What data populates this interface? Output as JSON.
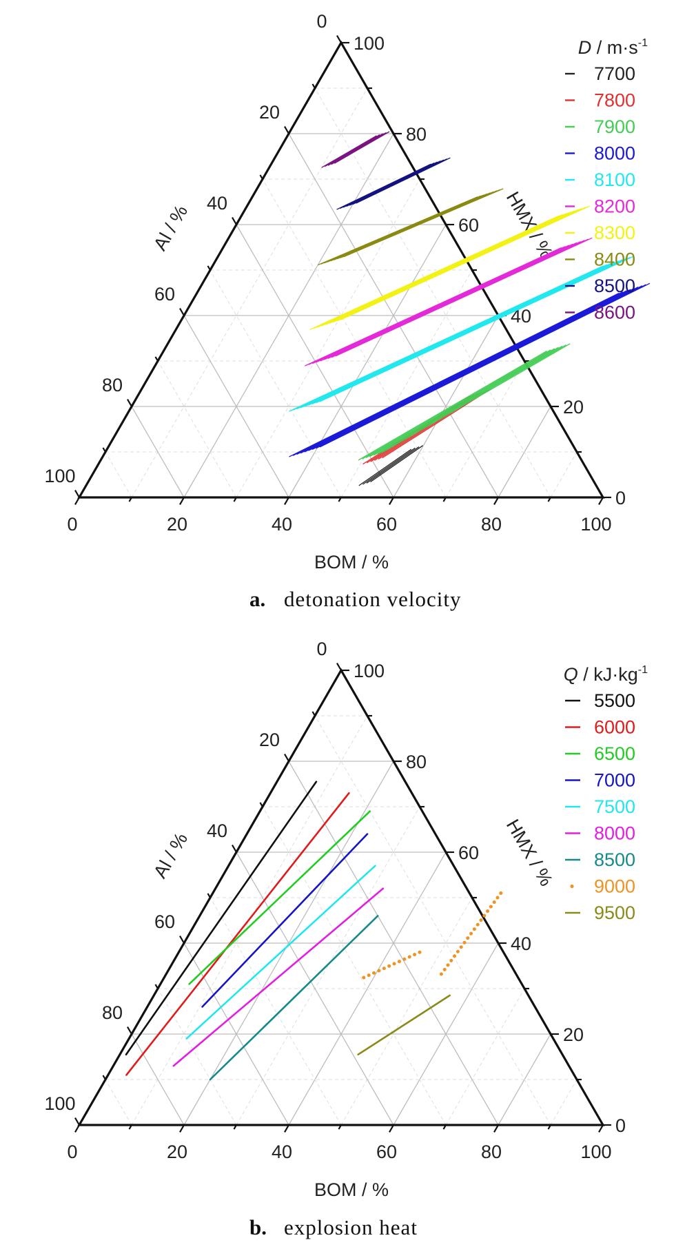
{
  "chart_data": [
    {
      "type": "ternary",
      "axes": {
        "bottom": {
          "label": "BOM / %",
          "ticks": [
            "0",
            "20",
            "40",
            "60",
            "80",
            "100"
          ]
        },
        "left": {
          "label": "Al / %",
          "ticks": [
            "0",
            "20",
            "40",
            "60",
            "80",
            "100"
          ]
        },
        "right": {
          "label": "HMX / %",
          "ticks": [
            "0",
            "20",
            "40",
            "60",
            "80",
            "100"
          ]
        }
      },
      "grid": true,
      "legend": {
        "title_symbol": "D",
        "title_unit": " / m·s",
        "title_sup": "-1",
        "placement": "top-right",
        "marker": "dash"
      },
      "caption": {
        "label": "a.",
        "text": "detonation velocity"
      },
      "series": [
        {
          "name": "7700",
          "color": "#222222",
          "lines": 4,
          "spread": 0.6,
          "hmx": [
            3,
            11
          ],
          "bom_at_lo": 53,
          "bom_at_hi": 59
        },
        {
          "name": "7800",
          "color": "#e23030",
          "lines": 6,
          "spread": 0.6,
          "hmx": [
            8,
            23
          ],
          "bom_at_lo": 52,
          "bom_at_hi": 65
        },
        {
          "name": "7900",
          "color": "#44cc55",
          "lines": 7,
          "spread": 0.6,
          "hmx": [
            9,
            33
          ],
          "bom_at_lo": 51,
          "bom_at_hi": 75
        },
        {
          "name": "8000",
          "color": "#1a1ad8",
          "lines": 9,
          "spread": 0.6,
          "hmx": [
            10,
            46
          ],
          "bom_at_lo": 38,
          "bom_at_hi": 83
        },
        {
          "name": "8100",
          "color": "#22e8ee",
          "lines": 9,
          "spread": 0.6,
          "hmx": [
            20,
            52
          ],
          "bom_at_lo": 33,
          "bom_at_hi": 77
        },
        {
          "name": "8200",
          "color": "#e42ad8",
          "lines": 9,
          "spread": 0.6,
          "hmx": [
            30,
            56
          ],
          "bom_at_lo": 31,
          "bom_at_hi": 67
        },
        {
          "name": "8300",
          "color": "#f2f215",
          "lines": 9,
          "spread": 0.6,
          "hmx": [
            38,
            63
          ],
          "bom_at_lo": 28,
          "bom_at_hi": 63
        },
        {
          "name": "8400",
          "color": "#8a8a12",
          "lines": 9,
          "spread": 0.5,
          "hmx": [
            52,
            67
          ],
          "bom_at_lo": 22,
          "bom_at_hi": 45
        },
        {
          "name": "8500",
          "color": "#141480",
          "lines": 7,
          "spread": 0.5,
          "hmx": [
            64,
            74
          ],
          "bom_at_lo": 19,
          "bom_at_hi": 32
        },
        {
          "name": "8600",
          "color": "#7a1282",
          "lines": 5,
          "spread": 0.5,
          "hmx": [
            73,
            80
          ],
          "bom_at_lo": 11,
          "bom_at_hi": 18
        }
      ]
    },
    {
      "type": "ternary",
      "axes": {
        "bottom": {
          "label": "BOM / %",
          "ticks": [
            "0",
            "20",
            "40",
            "60",
            "80",
            "100"
          ]
        },
        "left": {
          "label": "Al / %",
          "ticks": [
            "0",
            "20",
            "40",
            "60",
            "80",
            "100"
          ]
        },
        "right": {
          "label": "HMX / %",
          "ticks": [
            "0",
            "20",
            "40",
            "60",
            "80",
            "100"
          ]
        }
      },
      "grid": true,
      "legend": {
        "title_symbol": "Q",
        "title_unit": " / kJ·kg",
        "title_sup": "-1",
        "placement": "top-right",
        "marker": "line"
      },
      "caption": {
        "label": "b.",
        "text": "explosion heat"
      },
      "series": [
        {
          "name": "5500",
          "color": "#111111",
          "dash": false,
          "points": [
            [
              7.5,
              75.5
            ],
            [
              1.2,
              15.5
            ]
          ]
        },
        {
          "name": "6000",
          "color": "#e01b1b",
          "dash": false,
          "points": [
            [
              15.0,
              73.0
            ],
            [
              3.5,
              11.0
            ]
          ]
        },
        {
          "name": "6500",
          "color": "#22cc22",
          "dash": false,
          "points": [
            [
              21.0,
              69.0
            ],
            [
              5.5,
              31.0
            ]
          ]
        },
        {
          "name": "7000",
          "color": "#1414c8",
          "dash": false,
          "points": [
            [
              23.0,
              64.0
            ],
            [
              10.5,
              26.0
            ]
          ]
        },
        {
          "name": "7500",
          "color": "#22e6ee",
          "dash": false,
          "points": [
            [
              28.0,
              57.0
            ],
            [
              11.0,
              19.0
            ]
          ]
        },
        {
          "name": "8000",
          "color": "#e21fe0",
          "dash": false,
          "points": [
            [
              32.0,
              52.0
            ],
            [
              11.5,
              13.0
            ]
          ]
        },
        {
          "name": "8500",
          "color": "#168a8a",
          "dash": false,
          "points": [
            [
              34.0,
              46.0
            ],
            [
              20.0,
              10.0
            ]
          ]
        },
        {
          "name": "9000",
          "color": "#ee9424",
          "dash": true,
          "points": [
            [
              55.0,
              51.0
            ],
            [
              52.5,
              33.0
            ]
          ]
        },
        {
          "name": "9000",
          "color": "#ee9424",
          "dash": true,
          "points": [
            [
              46.0,
              38.0
            ],
            [
              37.5,
              32.0
            ]
          ]
        },
        {
          "name": "9500",
          "color": "#8a8a1a",
          "dash": false,
          "points": [
            [
              56.5,
              28.5
            ],
            [
              45.5,
              15.5
            ]
          ]
        }
      ]
    }
  ]
}
